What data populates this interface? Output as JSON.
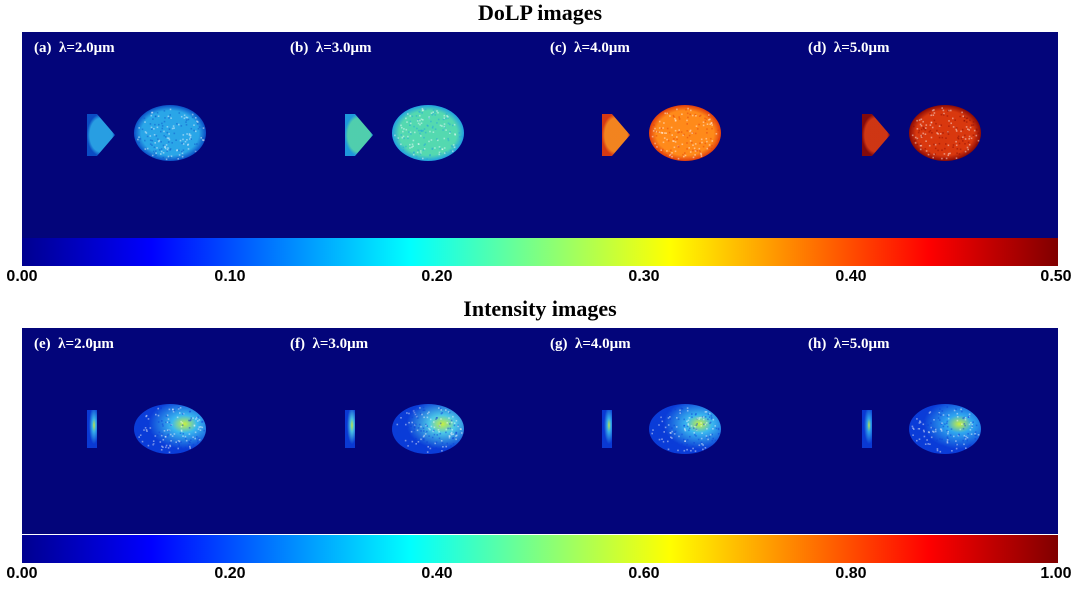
{
  "dolp": {
    "title": "DoLP images",
    "panels": [
      {
        "tag": "(a)",
        "wavelength": "λ=2.0μm",
        "color": "#2aa6e8",
        "edge": "#0a50c8"
      },
      {
        "tag": "(b)",
        "wavelength": "λ=3.0μm",
        "color": "#54d9b0",
        "edge": "#20a0e0"
      },
      {
        "tag": "(c)",
        "wavelength": "λ=4.0μm",
        "color": "#ff8a1a",
        "edge": "#e03c0c"
      },
      {
        "tag": "(d)",
        "wavelength": "λ=5.0μm",
        "color": "#d9380e",
        "edge": "#8a0a05"
      }
    ],
    "colorbar_ticks": [
      "0.00",
      "0.10",
      "0.20",
      "0.30",
      "0.40",
      "0.50"
    ]
  },
  "intensity": {
    "title": "Intensity images",
    "panels": [
      {
        "tag": "(e)",
        "wavelength": "λ=2.0μm",
        "color": "#3ab8f0",
        "edge": "#0a3cd8"
      },
      {
        "tag": "(f)",
        "wavelength": "λ=3.0μm",
        "color": "#4cc8e8",
        "edge": "#0a3cd8"
      },
      {
        "tag": "(g)",
        "wavelength": "λ=4.0μm",
        "color": "#3ab8f0",
        "edge": "#0a3cd8"
      },
      {
        "tag": "(h)",
        "wavelength": "λ=5.0μm",
        "color": "#30a8f0",
        "edge": "#0a3cd8"
      }
    ],
    "colorbar_ticks": [
      "0.00",
      "0.20",
      "0.40",
      "0.60",
      "0.80",
      "1.00"
    ]
  }
}
